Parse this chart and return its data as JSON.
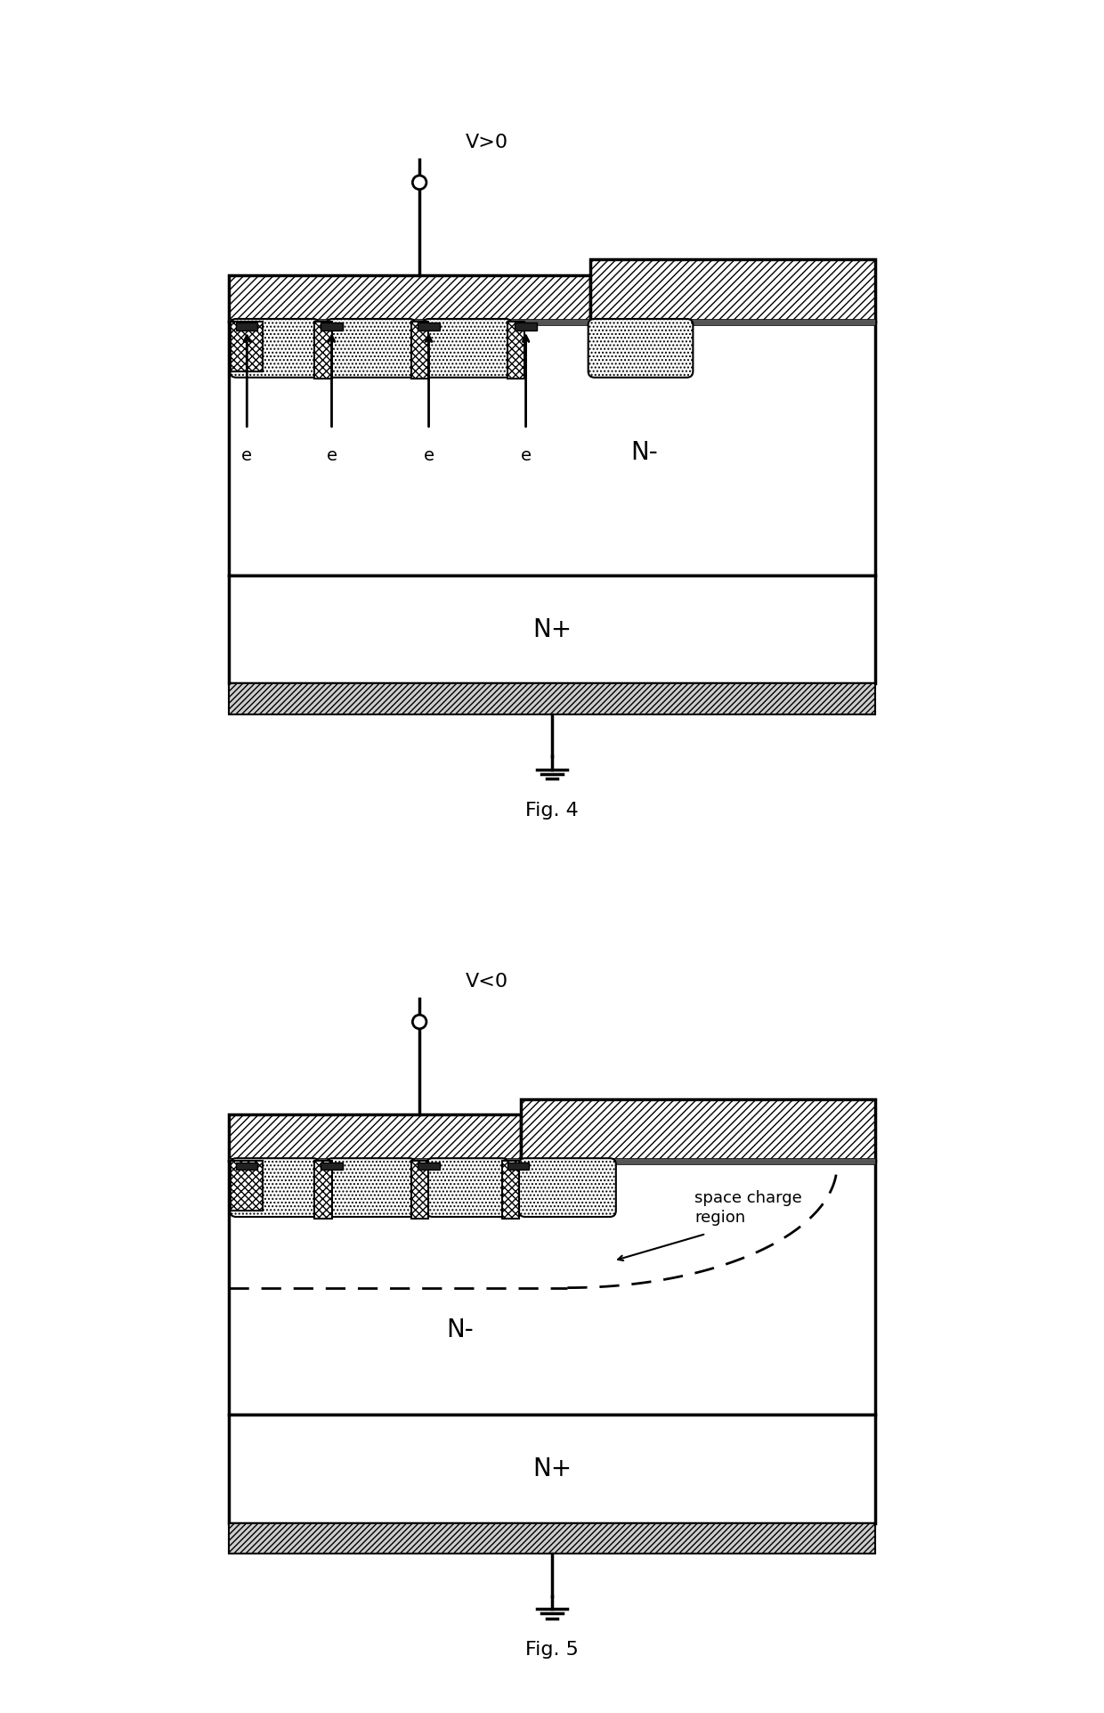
{
  "fig_width": 12.4,
  "fig_height": 19.23,
  "bg_color": "#ffffff",
  "fig4_label": "Fig. 4",
  "fig5_label": "Fig. 5",
  "vpos_label": "V>0",
  "vneg_label": "V<0",
  "nm_label": "N-",
  "np_label": "N+",
  "space_charge_label": "space charge\nregion"
}
